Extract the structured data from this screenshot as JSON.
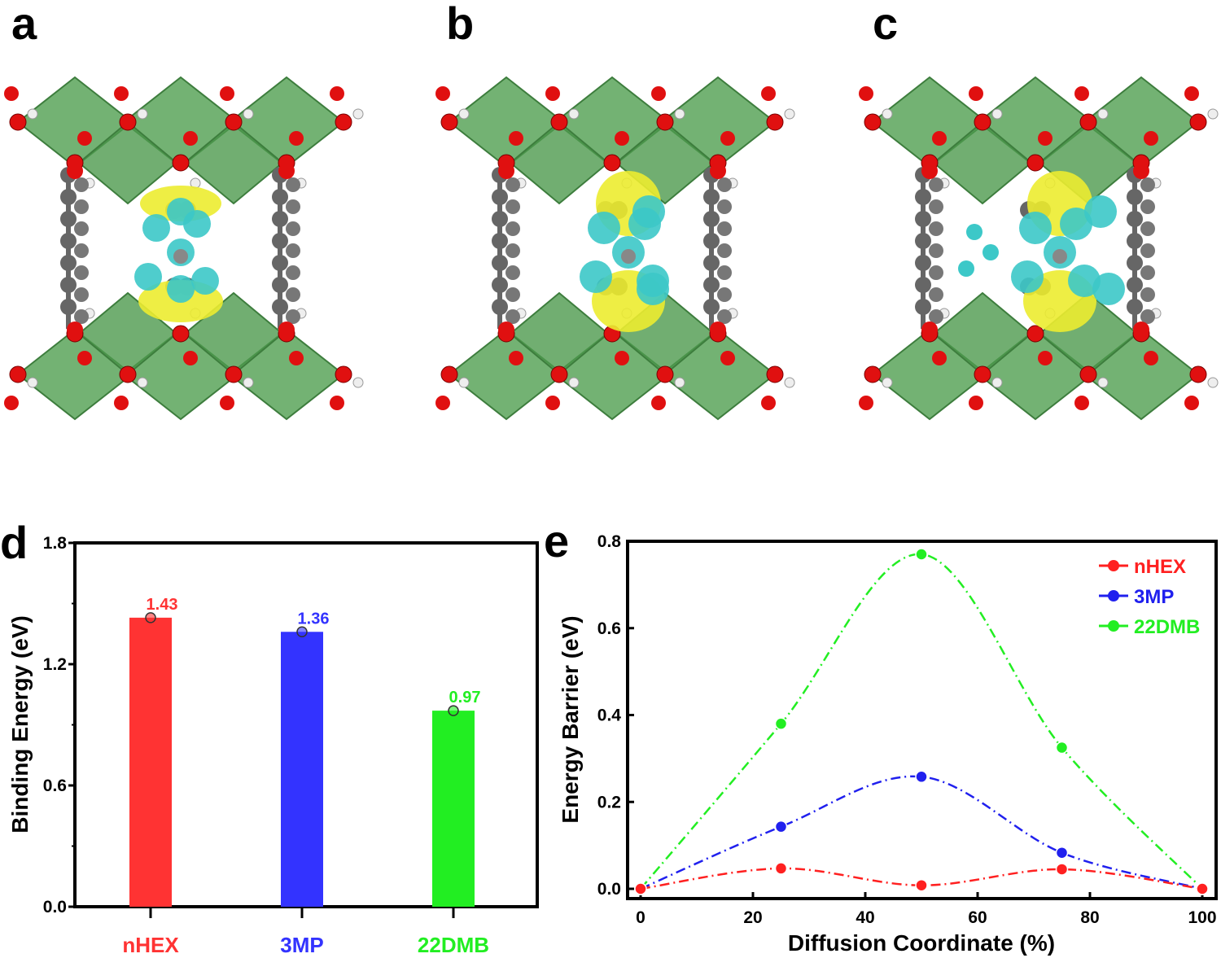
{
  "panels": [
    {
      "label": "a"
    },
    {
      "label": "b"
    },
    {
      "label": "c"
    }
  ],
  "chart_data": [
    {
      "panel_label": "d",
      "type": "bar",
      "categories": [
        "nHEX",
        "3MP",
        "22DMB"
      ],
      "values": [
        1.43,
        1.36,
        0.97
      ],
      "data_labels": [
        "1.43",
        "1.36",
        "0.97"
      ],
      "colors": [
        "#ff3333",
        "#3333ff",
        "#22ee22"
      ],
      "xlabel": "",
      "ylabel": "Binding Energy (eV)",
      "ylim": [
        0,
        1.8
      ],
      "yticks": [
        "0.0",
        "0.6",
        "1.2",
        "1.8"
      ],
      "grid": false
    },
    {
      "panel_label": "e",
      "type": "line",
      "x": [
        0,
        25,
        50,
        75,
        100
      ],
      "series": [
        {
          "name": "nHEX",
          "color": "#ff2020",
          "values": [
            0,
            0.047,
            0.008,
            0.045,
            0
          ]
        },
        {
          "name": "3MP",
          "color": "#2020ee",
          "values": [
            0,
            0.143,
            0.258,
            0.083,
            0
          ]
        },
        {
          "name": "22DMB",
          "color": "#22ee22",
          "values": [
            0,
            0.38,
            0.77,
            0.325,
            0
          ]
        }
      ],
      "xlabel": "Diffusion Coordinate (%)",
      "ylabel": "Energy Barrier (eV)",
      "xlim": [
        0,
        100
      ],
      "ylim": [
        0,
        0.8
      ],
      "xticks": [
        "0",
        "20",
        "40",
        "60",
        "80",
        "100"
      ],
      "yticks": [
        "0.0",
        "0.2",
        "0.4",
        "0.6",
        "0.8"
      ],
      "legend": "top-right",
      "grid": false
    }
  ]
}
